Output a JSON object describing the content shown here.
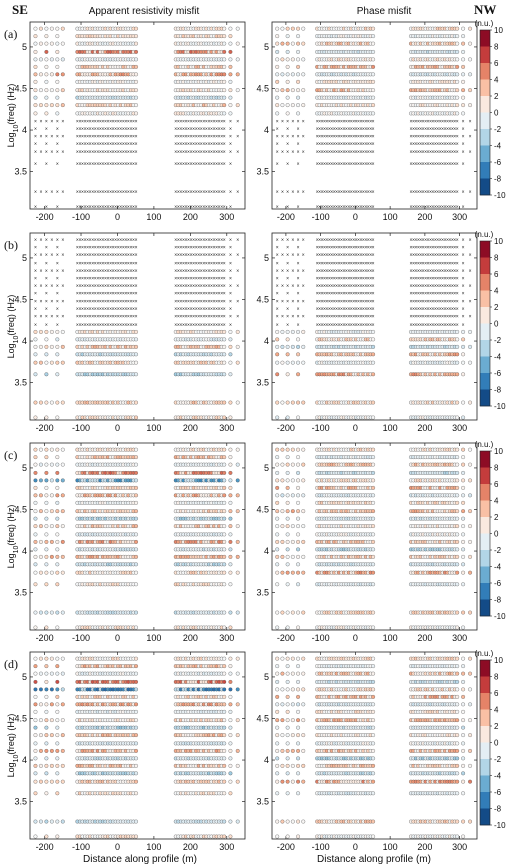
{
  "chart_data": {
    "type": "scatter",
    "corner_labels": {
      "left": "SE",
      "right": "NW"
    },
    "column_titles": [
      "Apparent resistivity misfit",
      "Phase misfit"
    ],
    "panel_labels": [
      "(a)",
      "(b)",
      "(c)",
      "(d)"
    ],
    "xlabel": "Distance along profile (m)",
    "ylabel_main": "Log",
    "ylabel_sub": "10",
    "ylabel_rest": "(freq) (Hz)",
    "xlim": [
      -240,
      350
    ],
    "ylim": [
      3.05,
      5.3
    ],
    "xticks": [
      -200,
      -100,
      0,
      100,
      200,
      300
    ],
    "yticks": [
      3.5,
      4,
      4.5,
      5
    ],
    "colorbar": {
      "unit": "(n.u.)",
      "ticks": [
        -10,
        -8,
        -6,
        -4,
        -2,
        0,
        2,
        4,
        6,
        8,
        10
      ],
      "range": [
        -10,
        10
      ]
    },
    "colors": {
      "negative_end": "#053061",
      "positive_end": "#67001f",
      "neutral": "#f7f7f7",
      "marker_x": "#333333"
    },
    "stations_x": [
      -225,
      -210,
      -195,
      -180,
      -165,
      -150,
      -110,
      -103,
      -96,
      -89,
      -82,
      -75,
      -68,
      -61,
      -54,
      -47,
      -40,
      -33,
      -26,
      -19,
      -12,
      -5,
      2,
      9,
      16,
      23,
      30,
      37,
      44,
      51,
      160,
      167,
      174,
      181,
      188,
      195,
      202,
      209,
      216,
      223,
      230,
      237,
      244,
      251,
      258,
      265,
      272,
      279,
      286,
      293,
      310,
      330
    ],
    "frequencies_log10": [
      5.22,
      5.13,
      5.04,
      4.94,
      4.85,
      4.76,
      4.67,
      4.58,
      4.48,
      4.39,
      4.3,
      4.2,
      4.11,
      4.02,
      3.93,
      3.84,
      3.74,
      3.6,
      3.26,
      3.08
    ],
    "panels": [
      {
        "label": "(a)",
        "high_freq_rows": 12,
        "band": "high",
        "rho": [
          0.5,
          1.2,
          -0.4,
          4.5,
          -1.2,
          2.1,
          3.4,
          -0.7,
          0.8,
          -2.5,
          1.9,
          -0.3,
          0.2,
          0.0,
          0.0,
          0.0,
          0.0,
          0.0,
          0.0,
          0.0
        ],
        "phase": [
          1.1,
          -0.8,
          1.9,
          -2.2,
          0.6,
          3.0,
          -1.7,
          0.9,
          2.4,
          -1.1,
          0.4,
          -0.6,
          0.3,
          0.0,
          0.0,
          0.0,
          0.0,
          0.0,
          0.0,
          0.0
        ]
      },
      {
        "label": "(b)",
        "high_freq_rows": 12,
        "band": "low",
        "rho": [
          0.0,
          0.0,
          0.0,
          0.0,
          0.0,
          0.0,
          0.0,
          0.0,
          0.0,
          0.0,
          0.0,
          0.0,
          0.6,
          -1.3,
          2.2,
          -2.8,
          1.4,
          -3.1,
          1.8,
          0.9
        ],
        "phase": [
          0.0,
          0.0,
          0.0,
          0.0,
          0.0,
          0.0,
          0.0,
          0.0,
          0.0,
          0.0,
          0.0,
          0.0,
          -0.9,
          1.5,
          -2.4,
          2.9,
          -1.1,
          3.3,
          1.2,
          -0.8
        ]
      },
      {
        "label": "(c)",
        "high_freq_rows": 12,
        "band": "both",
        "rho": [
          0.7,
          2.4,
          -1.1,
          4.8,
          -6.2,
          1.3,
          3.0,
          -0.9,
          1.6,
          -3.4,
          2.1,
          -1.5,
          3.6,
          -2.0,
          2.6,
          -2.9,
          1.2,
          0.8,
          -2.3,
          0.6
        ],
        "phase": [
          1.0,
          -1.4,
          2.2,
          -2.6,
          0.8,
          2.9,
          -1.6,
          1.1,
          2.5,
          -1.9,
          0.6,
          -0.7,
          2.2,
          -3.1,
          1.8,
          -2.2,
          3.4,
          -1.4,
          1.5,
          -0.5
        ]
      },
      {
        "label": "(d)",
        "high_freq_rows": 12,
        "band": "both",
        "rho": [
          0.8,
          2.7,
          -1.0,
          5.1,
          -7.4,
          1.5,
          3.2,
          -1.2,
          1.4,
          -3.6,
          2.3,
          -1.8,
          3.1,
          -2.4,
          2.2,
          -3.3,
          1.6,
          1.0,
          -2.6,
          0.7
        ],
        "phase": [
          1.2,
          -1.3,
          2.4,
          -2.4,
          1.0,
          3.1,
          -1.8,
          0.9,
          2.7,
          -2.1,
          0.5,
          -0.9,
          2.6,
          -3.5,
          2.0,
          -2.6,
          3.7,
          -1.6,
          1.8,
          -0.6
        ]
      }
    ]
  }
}
